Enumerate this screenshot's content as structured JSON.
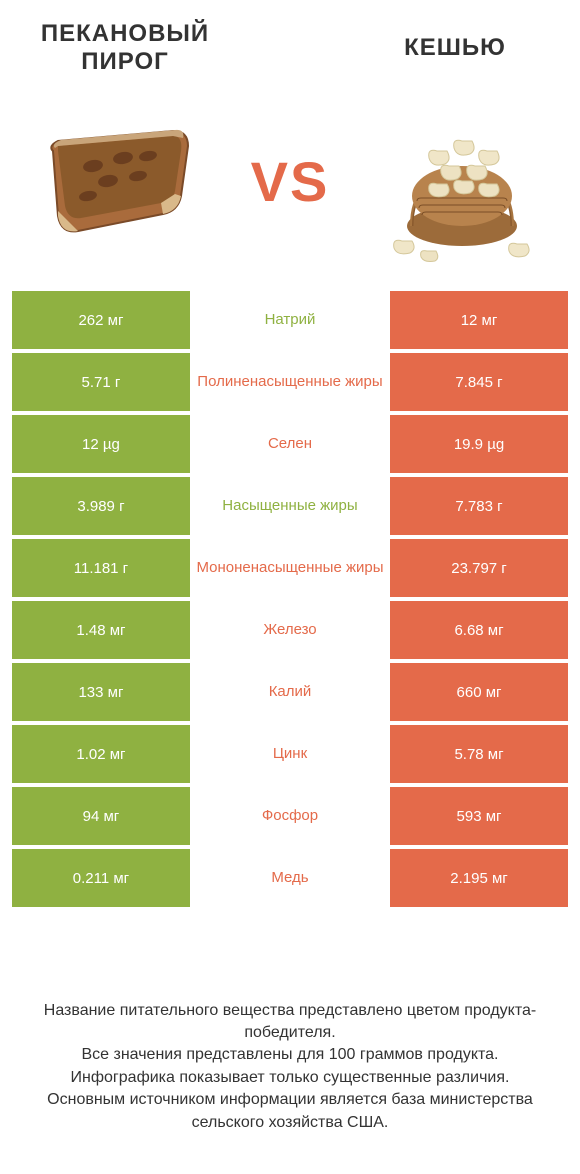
{
  "header": {
    "left_title": "ПЕКАНОВЫЙ ПИРОГ",
    "right_title": "КЕШЬЮ",
    "vs_label": "VS"
  },
  "colors": {
    "green": "#8fb141",
    "orange": "#e46a4a",
    "left_bar": "#8fb141",
    "right_bar": "#e46a4a"
  },
  "rows": [
    {
      "left": "262 мг",
      "mid": "Натрий",
      "right": "12 мг",
      "winner": "left"
    },
    {
      "left": "5.71 г",
      "mid": "Полиненасыщенные жиры",
      "right": "7.845 г",
      "winner": "right"
    },
    {
      "left": "12 µg",
      "mid": "Селен",
      "right": "19.9 µg",
      "winner": "right"
    },
    {
      "left": "3.989 г",
      "mid": "Насыщенные жиры",
      "right": "7.783 г",
      "winner": "left"
    },
    {
      "left": "11.181 г",
      "mid": "Мононенасыщенные жиры",
      "right": "23.797 г",
      "winner": "right"
    },
    {
      "left": "1.48 мг",
      "mid": "Железо",
      "right": "6.68 мг",
      "winner": "right"
    },
    {
      "left": "133 мг",
      "mid": "Калий",
      "right": "660 мг",
      "winner": "right"
    },
    {
      "left": "1.02 мг",
      "mid": "Цинк",
      "right": "5.78 мг",
      "winner": "right"
    },
    {
      "left": "94 мг",
      "mid": "Фосфор",
      "right": "593 мг",
      "winner": "right"
    },
    {
      "left": "0.211 мг",
      "mid": "Медь",
      "right": "2.195 мг",
      "winner": "right"
    }
  ],
  "footer_lines": [
    "Название питательного вещества представлено цветом продукта-победителя.",
    "Все значения представлены для 100 граммов продукта.",
    "Инфографика показывает только существенные различия.",
    "Основным источником информации является база министерства сельского хозяйства США."
  ]
}
